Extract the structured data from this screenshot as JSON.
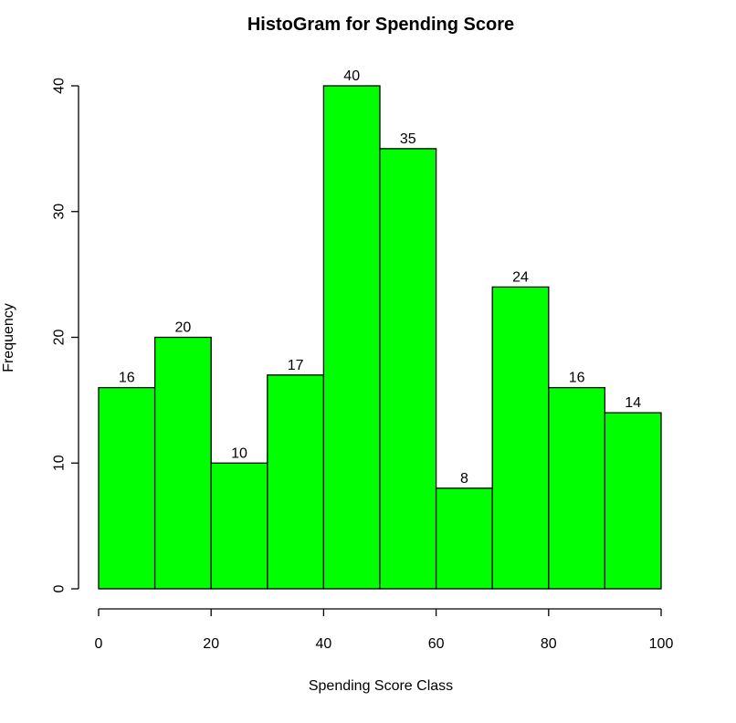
{
  "chart_data": {
    "type": "bar",
    "title": "HistoGram for Spending Score",
    "xlabel": "Spending Score Class",
    "ylabel": "Frequency",
    "bins": [
      {
        "start": 0,
        "end": 10,
        "count": 16
      },
      {
        "start": 10,
        "end": 20,
        "count": 20
      },
      {
        "start": 20,
        "end": 30,
        "count": 10
      },
      {
        "start": 30,
        "end": 40,
        "count": 17
      },
      {
        "start": 40,
        "end": 50,
        "count": 40
      },
      {
        "start": 50,
        "end": 60,
        "count": 35
      },
      {
        "start": 60,
        "end": 70,
        "count": 8
      },
      {
        "start": 70,
        "end": 80,
        "count": 24
      },
      {
        "start": 80,
        "end": 90,
        "count": 16
      },
      {
        "start": 90,
        "end": 100,
        "count": 14
      }
    ],
    "xlim": [
      0,
      100
    ],
    "ylim": [
      0,
      40
    ],
    "xticks": [
      0,
      20,
      40,
      60,
      80,
      100
    ],
    "yticks": [
      0,
      10,
      20,
      30,
      40
    ],
    "bar_color": "#00ff00",
    "edge_color": "#000000",
    "grid": false,
    "legend": "none"
  }
}
